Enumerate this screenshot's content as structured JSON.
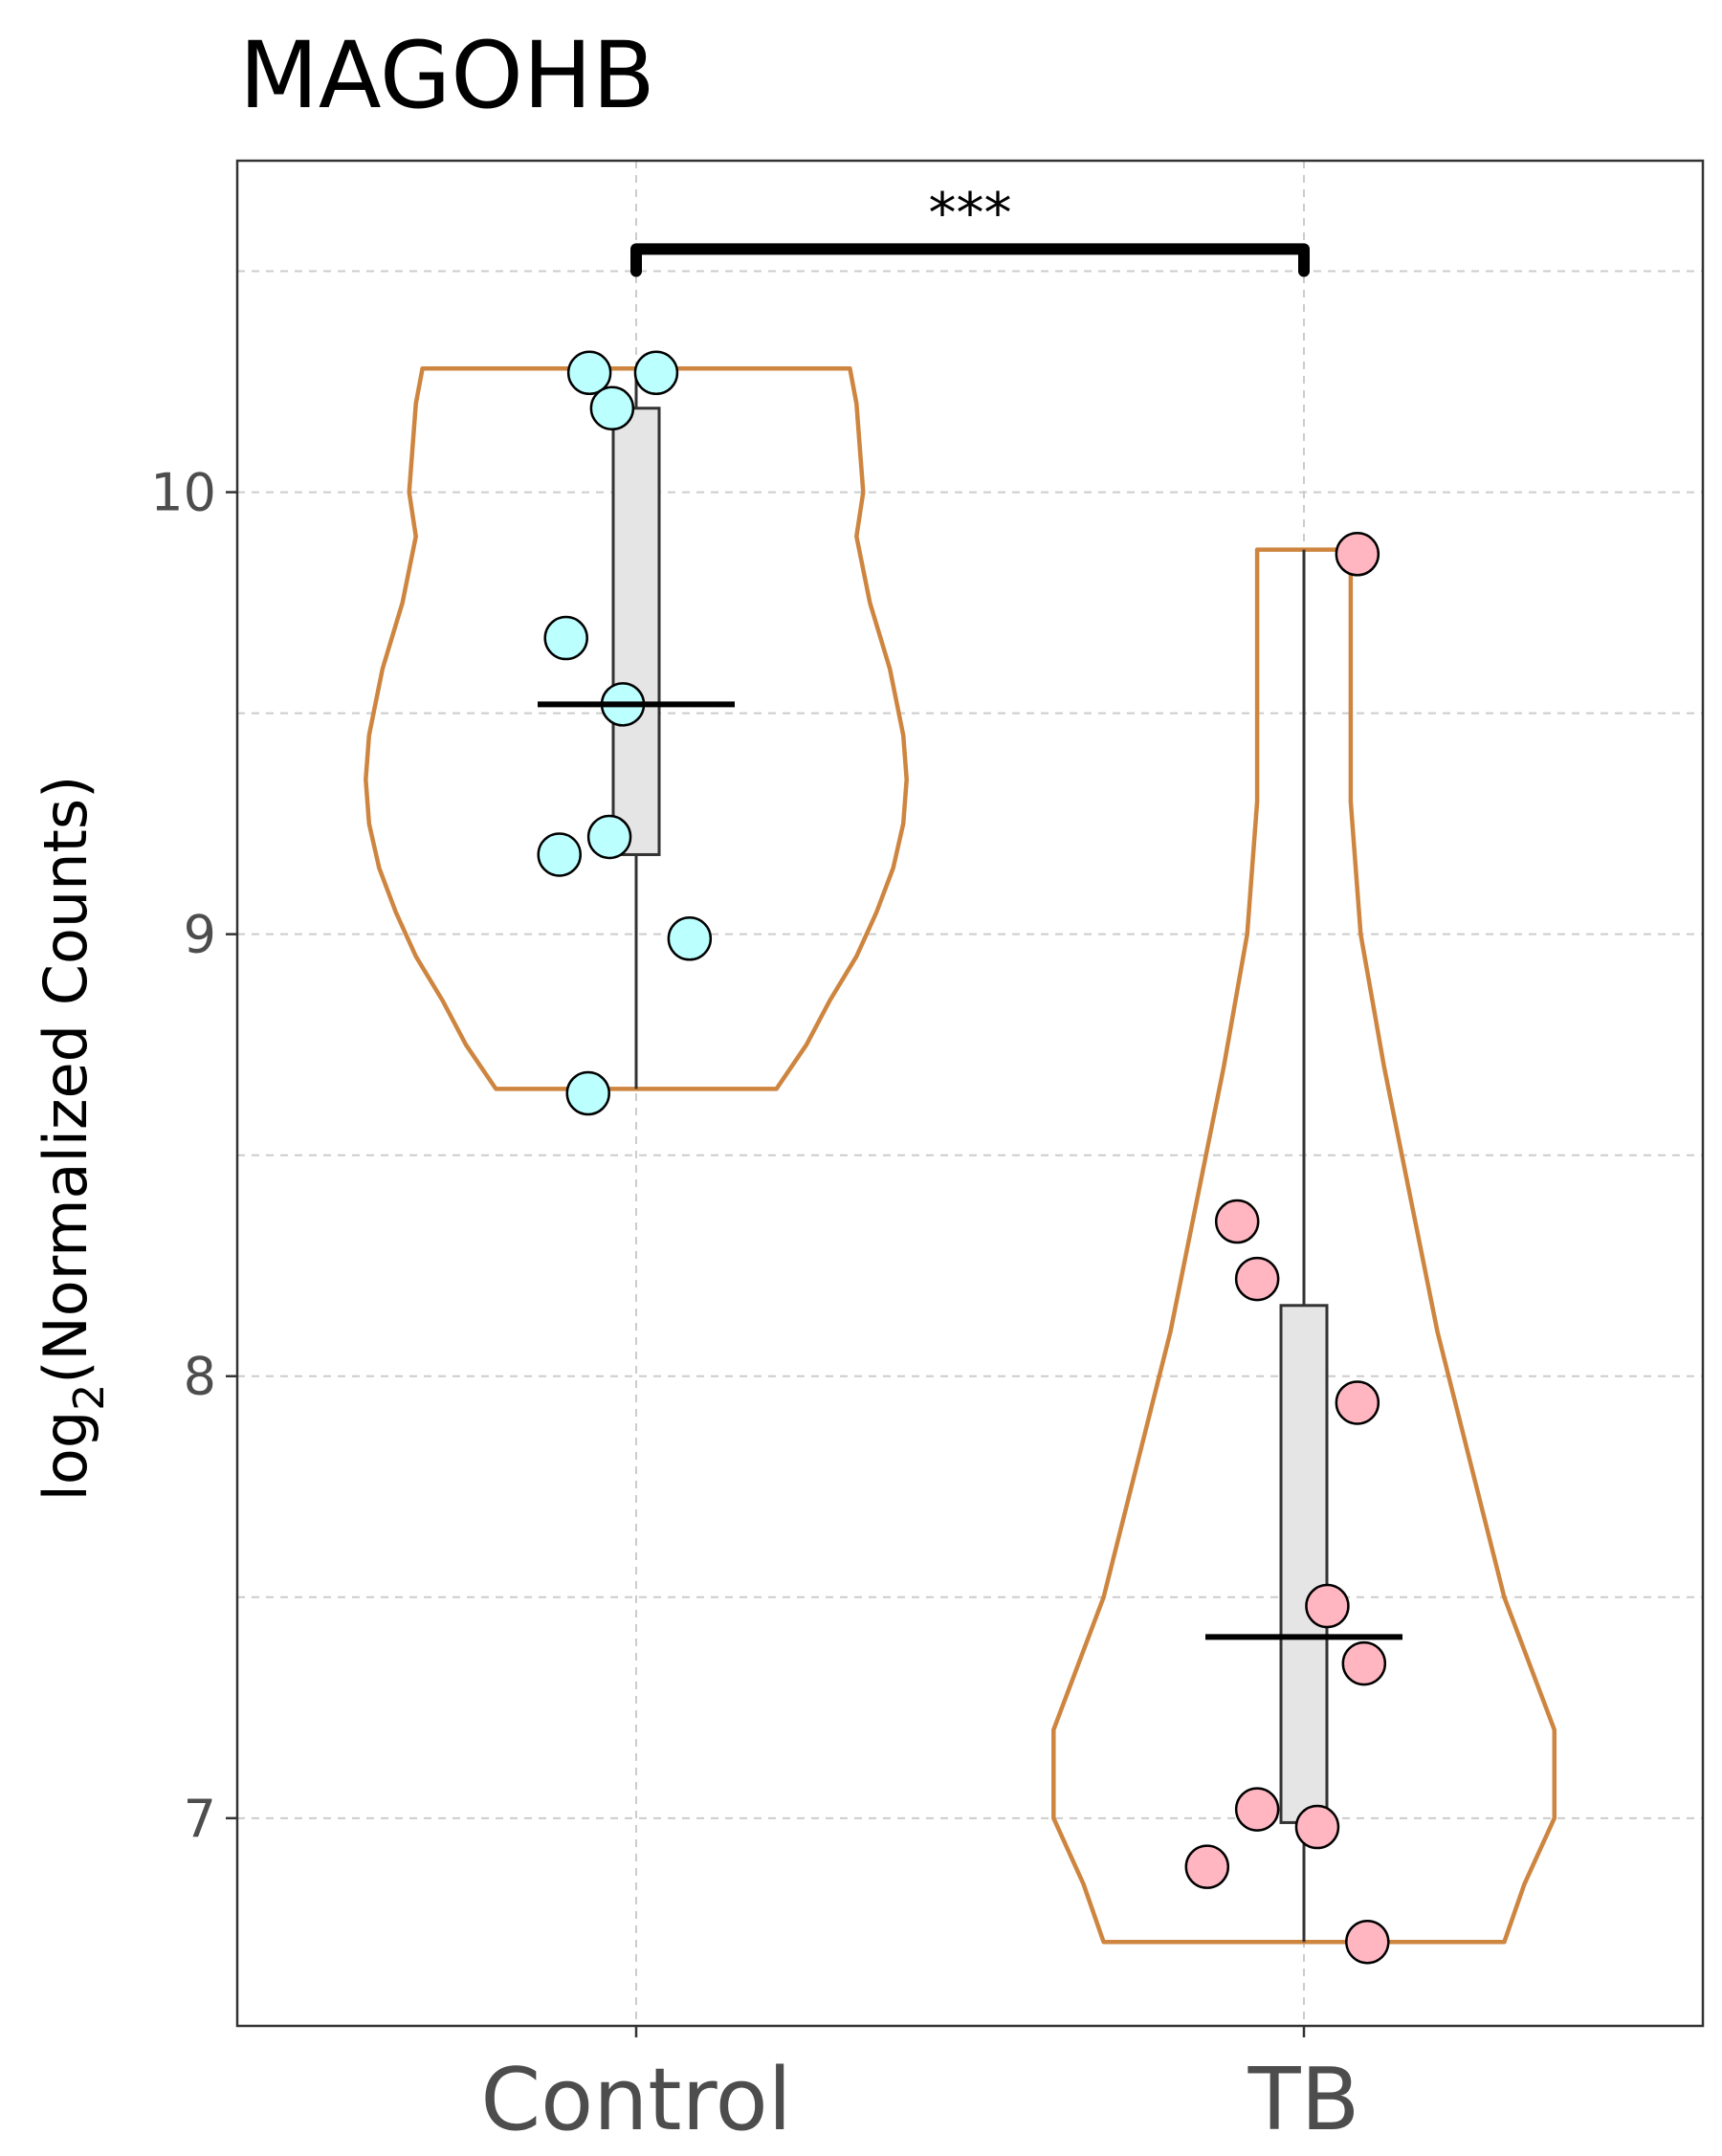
{
  "chart_data": {
    "type": "violin",
    "title": "MAGOHB",
    "ylabel_main": "log",
    "ylabel_sub": "2",
    "ylabel_rest": "(Normalized Counts)",
    "xlabel": "",
    "categories": [
      "Control",
      "TB"
    ],
    "ylim": [
      6.53,
      10.75
    ],
    "yticks": [
      7,
      8,
      9,
      10
    ],
    "ytick_labels": [
      "7",
      "8",
      "9",
      "10"
    ],
    "grid": true,
    "significance": {
      "label": "***",
      "from": "Control",
      "to": "TB",
      "y_bracket": 10.55,
      "y_tick_end": 10.5
    },
    "colors": {
      "violin_outline": "#CD853F",
      "box_fill": "#E5E5E5",
      "box_outline": "#333333",
      "control_points": "#BBFFFF",
      "tb_points": "#FFB6C1",
      "grid": "#CCCCCC",
      "panel_border": "#333333"
    },
    "series": [
      {
        "name": "Control",
        "points": [
          {
            "x_jitter": -0.07,
            "y": 10.27
          },
          {
            "x_jitter": 0.03,
            "y": 10.27
          },
          {
            "x_jitter": -0.036,
            "y": 10.19
          },
          {
            "x_jitter": -0.105,
            "y": 9.67
          },
          {
            "x_jitter": -0.02,
            "y": 9.52
          },
          {
            "x_jitter": -0.04,
            "y": 9.22
          },
          {
            "x_jitter": -0.115,
            "y": 9.18
          },
          {
            "x_jitter": 0.08,
            "y": 8.99
          },
          {
            "x_jitter": -0.072,
            "y": 8.64
          }
        ],
        "box": {
          "q1": 9.18,
          "median": 9.52,
          "q3": 10.19,
          "whisker_low": 8.65,
          "whisker_high": 10.28
        },
        "violin_profile": [
          [
            10.28,
            0.32
          ],
          [
            10.2,
            0.33
          ],
          [
            10.1,
            0.335
          ],
          [
            10.0,
            0.34
          ],
          [
            9.9,
            0.33
          ],
          [
            9.75,
            0.35
          ],
          [
            9.6,
            0.38
          ],
          [
            9.45,
            0.4
          ],
          [
            9.35,
            0.405
          ],
          [
            9.25,
            0.4
          ],
          [
            9.15,
            0.385
          ],
          [
            9.05,
            0.36
          ],
          [
            8.95,
            0.33
          ],
          [
            8.85,
            0.29
          ],
          [
            8.75,
            0.255
          ],
          [
            8.65,
            0.21
          ]
        ]
      },
      {
        "name": "TB",
        "points": [
          {
            "x_jitter": 0.08,
            "y": 9.86
          },
          {
            "x_jitter": -0.1,
            "y": 8.35
          },
          {
            "x_jitter": -0.07,
            "y": 8.22
          },
          {
            "x_jitter": 0.08,
            "y": 7.94
          },
          {
            "x_jitter": 0.035,
            "y": 7.48
          },
          {
            "x_jitter": 0.09,
            "y": 7.35
          },
          {
            "x_jitter": -0.07,
            "y": 7.02
          },
          {
            "x_jitter": 0.02,
            "y": 6.98
          },
          {
            "x_jitter": -0.145,
            "y": 6.89
          },
          {
            "x_jitter": 0.095,
            "y": 6.72
          }
        ],
        "box": {
          "q1": 6.99,
          "median": 7.41,
          "q3": 8.16,
          "whisker_low": 6.72,
          "whisker_high": 9.87
        },
        "violin_profile": [
          [
            9.87,
            0.07
          ],
          [
            9.6,
            0.07
          ],
          [
            9.3,
            0.07
          ],
          [
            9.0,
            0.085
          ],
          [
            8.7,
            0.12
          ],
          [
            8.4,
            0.16
          ],
          [
            8.1,
            0.2
          ],
          [
            7.8,
            0.25
          ],
          [
            7.5,
            0.3
          ],
          [
            7.2,
            0.375
          ],
          [
            7.0,
            0.375
          ],
          [
            6.85,
            0.33
          ],
          [
            6.72,
            0.3
          ]
        ]
      }
    ]
  }
}
